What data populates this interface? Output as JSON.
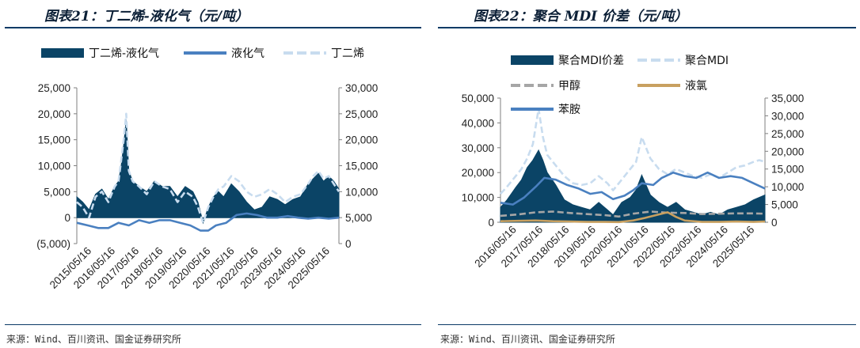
{
  "titles": {
    "left": "图表21：丁二烯-液化气（元/吨）",
    "right": "图表22：聚合 MDI 价差（元/吨）"
  },
  "sources": {
    "left": "来源：Wind、百川资讯、国金证券研究所",
    "right": "来源：Wind、百川资讯、国金证券研究所"
  },
  "colors": {
    "dark_area": "#0b4466",
    "medium_line": "#4a80c0",
    "light_line": "#c8dcef",
    "gray_dashed": "#a6a6a6",
    "tan_line": "#c8a060",
    "negative_label": "#d00000"
  },
  "chart_data": [
    {
      "type": "area",
      "x_ticks": [
        "2015/05/16",
        "2016/05/16",
        "2017/05/16",
        "2018/05/16",
        "2019/05/16",
        "2020/05/16",
        "2021/05/16",
        "2022/05/16",
        "2023/05/16",
        "2024/05/16",
        "2025/05/16"
      ],
      "x_range": [
        2015.37,
        2025.6
      ],
      "y_left": {
        "ticks": [
          -5000,
          0,
          5000,
          10000,
          15000,
          20000,
          25000
        ],
        "tick_labels": [
          "(5,000)",
          "0",
          "5,000",
          "10,000",
          "15,000",
          "20,000",
          "25,000"
        ],
        "range": [
          -5000,
          25000
        ]
      },
      "y_right": {
        "ticks": [
          0,
          5000,
          10000,
          15000,
          20000,
          25000,
          30000
        ],
        "tick_labels": [
          "0",
          "5,000",
          "10,000",
          "15,000",
          "20,000",
          "25,000",
          "30,000"
        ],
        "range": [
          0,
          30000
        ]
      },
      "legend_position": "top",
      "series": [
        {
          "name": "丁二烯-液化气",
          "style": "area",
          "axis": "left",
          "x": [
            2015.37,
            2015.6,
            2015.85,
            2016.1,
            2016.35,
            2016.6,
            2016.85,
            2017.0,
            2017.1,
            2017.2,
            2017.3,
            2017.4,
            2017.55,
            2017.8,
            2018.1,
            2018.4,
            2018.7,
            2019.0,
            2019.3,
            2019.6,
            2019.9,
            2020.1,
            2020.3,
            2020.5,
            2020.7,
            2020.9,
            2021.1,
            2021.4,
            2021.7,
            2022.0,
            2022.3,
            2022.6,
            2022.9,
            2023.2,
            2023.5,
            2023.8,
            2024.1,
            2024.4,
            2024.6,
            2024.8,
            2025.0,
            2025.2,
            2025.4,
            2025.6
          ],
          "y": [
            4000,
            3000,
            1500,
            4500,
            5500,
            3500,
            6000,
            7000,
            10000,
            14000,
            19000,
            9000,
            7000,
            6000,
            5000,
            7000,
            6000,
            6000,
            4000,
            6000,
            5000,
            3000,
            -1000,
            2000,
            4000,
            5000,
            4000,
            6500,
            5000,
            3000,
            1500,
            2000,
            4000,
            3500,
            2500,
            3500,
            4000,
            6500,
            7500,
            8500,
            7000,
            8000,
            7000,
            5500
          ]
        },
        {
          "name": "液化气",
          "style": "line",
          "axis": "left",
          "x": [
            2015.37,
            2015.8,
            2016.2,
            2016.6,
            2017.0,
            2017.4,
            2017.8,
            2018.2,
            2018.6,
            2019.0,
            2019.4,
            2019.8,
            2020.2,
            2020.5,
            2020.8,
            2021.2,
            2021.6,
            2022.0,
            2022.4,
            2022.8,
            2023.2,
            2023.6,
            2024.0,
            2024.4,
            2024.8,
            2025.2,
            2025.6
          ],
          "y": [
            -1000,
            -1500,
            -2000,
            -2000,
            -1000,
            -1500,
            -500,
            -1000,
            -500,
            -500,
            -1000,
            -1500,
            -2500,
            -2500,
            -1500,
            -1000,
            500,
            800,
            500,
            0,
            0,
            300,
            0,
            -200,
            0,
            -200,
            0
          ]
        },
        {
          "name": "丁二烯",
          "style": "dashed",
          "axis": "right",
          "x": [
            2015.37,
            2015.6,
            2015.85,
            2016.1,
            2016.35,
            2016.6,
            2016.85,
            2017.0,
            2017.1,
            2017.2,
            2017.3,
            2017.4,
            2017.55,
            2017.8,
            2018.1,
            2018.4,
            2018.7,
            2019.0,
            2019.3,
            2019.6,
            2019.9,
            2020.1,
            2020.3,
            2020.5,
            2020.7,
            2020.9,
            2021.1,
            2021.4,
            2021.7,
            2022.0,
            2022.3,
            2022.6,
            2022.9,
            2023.2,
            2023.5,
            2023.8,
            2024.1,
            2024.4,
            2024.6,
            2024.8,
            2025.0,
            2025.2,
            2025.4,
            2025.6
          ],
          "y": [
            8000,
            7000,
            5000,
            9000,
            10000,
            8000,
            11000,
            12000,
            16000,
            20000,
            25000,
            14000,
            12000,
            11000,
            9500,
            12000,
            11000,
            10500,
            8000,
            10000,
            9000,
            7000,
            4000,
            7000,
            9000,
            10500,
            11000,
            13000,
            12000,
            10000,
            9000,
            9500,
            10500,
            9500,
            8000,
            9000,
            9500,
            11500,
            13000,
            14000,
            12500,
            13000,
            11500,
            10000
          ]
        }
      ]
    },
    {
      "type": "area",
      "x_ticks": [
        "2016/05/16",
        "2017/05/16",
        "2018/05/16",
        "2019/05/16",
        "2020/05/16",
        "2021/05/16",
        "2022/05/16",
        "2023/05/16",
        "2024/05/16",
        "2025/05/16"
      ],
      "x_range": [
        2016.37,
        2025.6
      ],
      "y_left": {
        "ticks": [
          0,
          10000,
          20000,
          30000,
          40000,
          50000
        ],
        "tick_labels": [
          "0",
          "10,000",
          "20,000",
          "30,000",
          "40,000",
          "50,000"
        ],
        "range": [
          0,
          50000
        ]
      },
      "y_right": {
        "ticks": [
          0,
          5000,
          10000,
          15000,
          20000,
          25000,
          30000,
          35000
        ],
        "tick_labels": [
          "0",
          "5,000",
          "10,000",
          "15,000",
          "20,000",
          "25,000",
          "30,000",
          "35,000"
        ],
        "range": [
          0,
          35000
        ]
      },
      "legend_position": "top",
      "series": [
        {
          "name": "聚合MDI价差",
          "style": "area",
          "axis": "left",
          "x": [
            2016.37,
            2016.6,
            2016.9,
            2017.1,
            2017.3,
            2017.5,
            2017.7,
            2017.85,
            2018.0,
            2018.3,
            2018.6,
            2018.9,
            2019.2,
            2019.5,
            2019.8,
            2020.1,
            2020.3,
            2020.6,
            2020.9,
            2021.1,
            2021.3,
            2021.6,
            2021.9,
            2022.2,
            2022.5,
            2022.8,
            2023.1,
            2023.4,
            2023.7,
            2024.0,
            2024.3,
            2024.6,
            2024.9,
            2025.2,
            2025.4,
            2025.6
          ],
          "y": [
            6000,
            9000,
            14000,
            17000,
            22000,
            25000,
            29000,
            25000,
            20000,
            15000,
            9000,
            7000,
            6000,
            5000,
            8000,
            5000,
            3000,
            8000,
            10000,
            13000,
            19000,
            11000,
            8000,
            6000,
            8000,
            5000,
            4000,
            3000,
            4000,
            3000,
            5000,
            6000,
            7000,
            9000,
            10000,
            11000
          ]
        },
        {
          "name": "聚合MDI",
          "style": "dashed",
          "axis": "right",
          "x": [
            2016.37,
            2016.6,
            2016.9,
            2017.1,
            2017.3,
            2017.5,
            2017.7,
            2017.85,
            2018.0,
            2018.3,
            2018.6,
            2018.9,
            2019.2,
            2019.5,
            2019.8,
            2020.1,
            2020.3,
            2020.6,
            2020.9,
            2021.1,
            2021.3,
            2021.6,
            2021.9,
            2022.2,
            2022.5,
            2022.8,
            2023.1,
            2023.4,
            2023.7,
            2024.0,
            2024.3,
            2024.6,
            2024.9,
            2025.2,
            2025.4,
            2025.6
          ],
          "y": [
            8000,
            10000,
            13000,
            15000,
            18000,
            22000,
            32000,
            24000,
            19000,
            16000,
            13000,
            11000,
            10500,
            11000,
            13000,
            11000,
            9000,
            12000,
            15000,
            17000,
            24000,
            18000,
            15000,
            13500,
            15000,
            14000,
            13000,
            12500,
            13500,
            12500,
            14000,
            15500,
            16000,
            17000,
            17500,
            17000
          ]
        },
        {
          "name": "甲醇",
          "style": "dashed",
          "axis": "right",
          "x": [
            2016.37,
            2017.0,
            2017.6,
            2018.2,
            2018.8,
            2019.4,
            2020.0,
            2020.5,
            2021.0,
            2021.6,
            2022.2,
            2022.8,
            2023.4,
            2024.0,
            2024.6,
            2025.2,
            2025.6
          ],
          "y": [
            1800,
            2200,
            2800,
            3000,
            2600,
            2300,
            2000,
            1600,
            2400,
            3000,
            2700,
            2600,
            2300,
            2400,
            2500,
            2500,
            2400
          ]
        },
        {
          "name": "液氯",
          "style": "line",
          "axis": "right",
          "x": [
            2016.37,
            2017.0,
            2017.6,
            2018.2,
            2018.8,
            2019.4,
            2020.0,
            2020.5,
            2021.0,
            2021.4,
            2021.8,
            2022.2,
            2022.5,
            2022.8,
            2023.4,
            2024.0,
            2024.6,
            2025.2,
            2025.6
          ],
          "y": [
            300,
            400,
            500,
            300,
            200,
            100,
            100,
            50,
            500,
            1200,
            2000,
            2800,
            1500,
            500,
            100,
            100,
            200,
            100,
            200
          ]
        },
        {
          "name": "苯胺",
          "style": "line",
          "axis": "right",
          "x": [
            2016.37,
            2016.8,
            2017.2,
            2017.6,
            2017.9,
            2018.3,
            2018.7,
            2019.1,
            2019.5,
            2019.9,
            2020.3,
            2020.7,
            2021.0,
            2021.3,
            2021.7,
            2022.0,
            2022.4,
            2022.8,
            2023.2,
            2023.6,
            2024.0,
            2024.4,
            2024.8,
            2025.2,
            2025.6
          ],
          "y": [
            5500,
            5000,
            7000,
            10000,
            12500,
            12000,
            10500,
            9500,
            8000,
            8500,
            6500,
            7500,
            9000,
            11000,
            10500,
            12500,
            14000,
            13000,
            12500,
            14000,
            12500,
            13000,
            12500,
            11000,
            9500
          ]
        }
      ]
    }
  ]
}
